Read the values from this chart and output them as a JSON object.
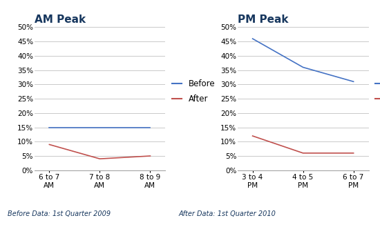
{
  "am_title": "AM Peak",
  "pm_title": "PM Peak",
  "am_xtick_labels": [
    "6 to 7\nAM",
    "7 to 8\nAM",
    "8 to 9\nAM"
  ],
  "pm_xtick_labels": [
    "3 to 4\nPM",
    "4 to 5\nPM",
    "6 to 7\nPM"
  ],
  "am_before": [
    0.15,
    0.15,
    0.15
  ],
  "am_after": [
    0.09,
    0.04,
    0.05
  ],
  "pm_before": [
    0.46,
    0.36,
    0.31
  ],
  "pm_after": [
    0.12,
    0.06,
    0.06
  ],
  "ylim": [
    0.0,
    0.5
  ],
  "yticks": [
    0.0,
    0.05,
    0.1,
    0.15,
    0.2,
    0.25,
    0.3,
    0.35,
    0.4,
    0.45,
    0.5
  ],
  "before_color": "#4472C4",
  "after_color": "#C0504D",
  "title_color": "#17375E",
  "title_fontsize": 11,
  "legend_fontsize": 8.5,
  "tick_fontsize": 7.5,
  "footnote_before": "Before Data: 1st Quarter 2009",
  "footnote_after": "After Data: 1st Quarter 2010",
  "footnote_color": "#17375E",
  "footnote_fontsize": 7,
  "bg_color": "#FFFFFF",
  "grid_color": "#C0C0C0"
}
